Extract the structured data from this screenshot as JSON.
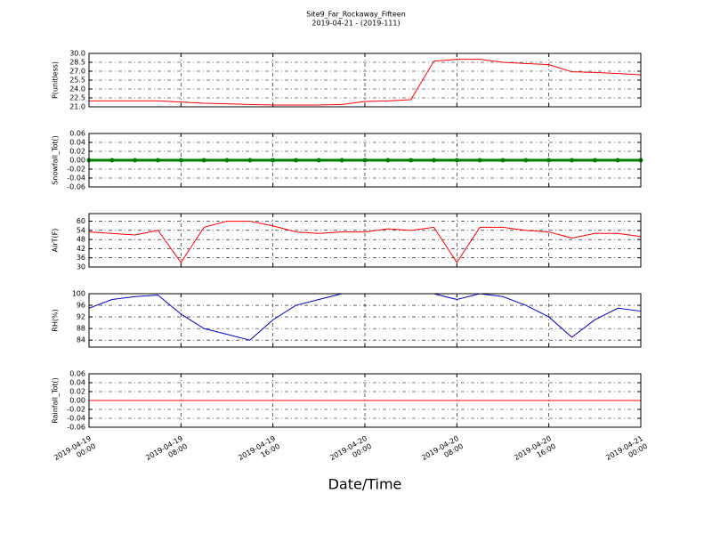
{
  "title": "Site9_Far_Rockaway_Fifteen",
  "subtitle": "2019-04-21 - (2019-111)",
  "xlabel": "Date/Time",
  "xlim": [
    "2019-04-19 00:00",
    "2019-04-21 00:00"
  ],
  "xticks": [
    {
      "value": "2019-04-19 00:00",
      "label": "2019-04-19\n00:00"
    },
    {
      "value": "2019-04-19 08:00",
      "label": "2019-04-19\n08:00"
    },
    {
      "value": "2019-04-19 16:00",
      "label": "2019-04-19\n16:00"
    },
    {
      "value": "2019-04-20 00:00",
      "label": "2019-04-20\n00:00"
    },
    {
      "value": "2019-04-20 08:00",
      "label": "2019-04-20\n08:00"
    },
    {
      "value": "2019-04-20 16:00",
      "label": "2019-04-20\n16:00"
    },
    {
      "value": "2019-04-21 00:00",
      "label": "2019-04-21\n00:00"
    }
  ],
  "x": [
    "2019-04-19 00:00",
    "2019-04-19 02:00",
    "2019-04-19 04:00",
    "2019-04-19 06:00",
    "2019-04-19 08:00",
    "2019-04-19 10:00",
    "2019-04-19 12:00",
    "2019-04-19 14:00",
    "2019-04-19 16:00",
    "2019-04-19 18:00",
    "2019-04-19 20:00",
    "2019-04-19 22:00",
    "2019-04-20 00:00",
    "2019-04-20 02:00",
    "2019-04-20 04:00",
    "2019-04-20 06:00",
    "2019-04-20 08:00",
    "2019-04-20 10:00",
    "2019-04-20 12:00",
    "2019-04-20 14:00",
    "2019-04-20 16:00",
    "2019-04-20 18:00",
    "2019-04-20 20:00",
    "2019-04-20 22:00",
    "2019-04-21 00:00"
  ],
  "chart_data": [
    {
      "type": "line",
      "ylabel": "P(unitless)",
      "color": "#ff0000",
      "grid": true,
      "values": [
        22.0,
        22.0,
        22.0,
        22.0,
        21.8,
        21.6,
        21.5,
        21.4,
        21.3,
        21.3,
        21.3,
        21.4,
        21.9,
        22.0,
        22.2,
        28.7,
        29.0,
        29.0,
        28.5,
        28.3,
        28.1,
        26.9,
        26.8,
        26.6,
        26.4
      ],
      "ylim": [
        21,
        30
      ],
      "yticks": [
        {
          "value": 21,
          "label": "21.0"
        },
        22.5,
        {
          "value": 24,
          "label": "24.0"
        },
        25.5,
        {
          "value": 27,
          "label": "27.0"
        },
        28.5,
        {
          "value": 30,
          "label": "30.0"
        }
      ]
    },
    {
      "type": "line",
      "ylabel": "Snowfall_Tot()",
      "color": "#008000",
      "marker": true,
      "grid": true,
      "values": [
        0,
        0,
        0,
        0,
        0,
        0,
        0,
        0,
        0,
        0,
        0,
        0,
        0,
        0,
        0,
        0,
        0,
        0,
        0,
        0,
        0,
        0,
        0,
        0,
        0
      ],
      "ylim": [
        -0.06,
        0.06
      ],
      "yticks": [
        -0.06,
        -0.04,
        -0.02,
        {
          "value": 0,
          "label": "0.00"
        },
        0.02,
        0.04,
        0.06
      ]
    },
    {
      "type": "line",
      "ylabel": "AirT(F)",
      "color": "#ff0000",
      "grid": true,
      "values": [
        53,
        52,
        51,
        54,
        33,
        56,
        60,
        60,
        57,
        53,
        52,
        53,
        53,
        55,
        54,
        56,
        33,
        56,
        56,
        54,
        53,
        49,
        52,
        52,
        50
      ],
      "ylim": [
        30,
        65
      ],
      "yticks": [
        30,
        36,
        42,
        48,
        54,
        60
      ]
    },
    {
      "type": "line",
      "ylabel": "RH(%)",
      "color": "#0000cc",
      "grid": true,
      "values": [
        95,
        98,
        99,
        99.5,
        93,
        88,
        86,
        84,
        91,
        96,
        98,
        100,
        100,
        100,
        100,
        100,
        98,
        100,
        99,
        96,
        92,
        85,
        91,
        95,
        94
      ],
      "ylim": [
        81.6,
        100
      ],
      "yticks": [
        84,
        88,
        92,
        96,
        100
      ]
    },
    {
      "type": "line",
      "ylabel": "Rainfall_Tot()",
      "color": "#ff0000",
      "grid": true,
      "values": [
        0,
        0,
        0,
        0,
        0,
        0,
        0,
        0,
        0,
        0,
        0,
        0,
        0,
        0,
        0,
        0,
        0,
        0,
        0,
        0,
        0,
        0,
        0,
        0,
        0
      ],
      "ylim": [
        -0.06,
        0.06
      ],
      "yticks": [
        -0.06,
        -0.04,
        -0.02,
        {
          "value": 0,
          "label": "0.00"
        },
        0.02,
        0.04,
        0.06
      ]
    }
  ]
}
